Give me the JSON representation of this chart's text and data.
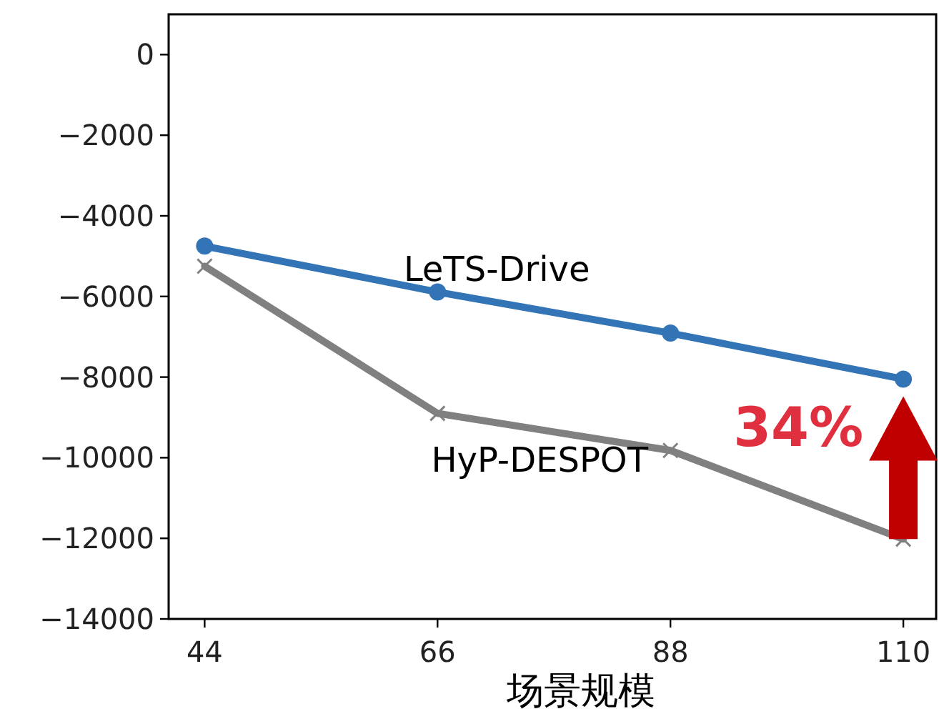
{
  "chart_data": {
    "type": "line",
    "xlabel": "场景规模",
    "x": [
      44,
      66,
      88,
      110
    ],
    "series": [
      {
        "name": "LeTS-Drive",
        "color": "#3274b5",
        "marker": "circle",
        "values": [
          -4750,
          -5890,
          -6910,
          -8050
        ]
      },
      {
        "name": "HyP-DESPOT",
        "color": "#808080",
        "marker": "cross",
        "values": [
          -5250,
          -8900,
          -9820,
          -12020
        ]
      }
    ],
    "xlim": [
      40.6,
      113.1
    ],
    "ylim": [
      -14000,
      1000
    ],
    "xticks": [
      44,
      66,
      88,
      110
    ],
    "yticks": [
      0,
      -2000,
      -4000,
      -6000,
      -8000,
      -10000,
      -12000,
      -14000
    ],
    "grid": false,
    "annotations": [
      "34%"
    ]
  }
}
